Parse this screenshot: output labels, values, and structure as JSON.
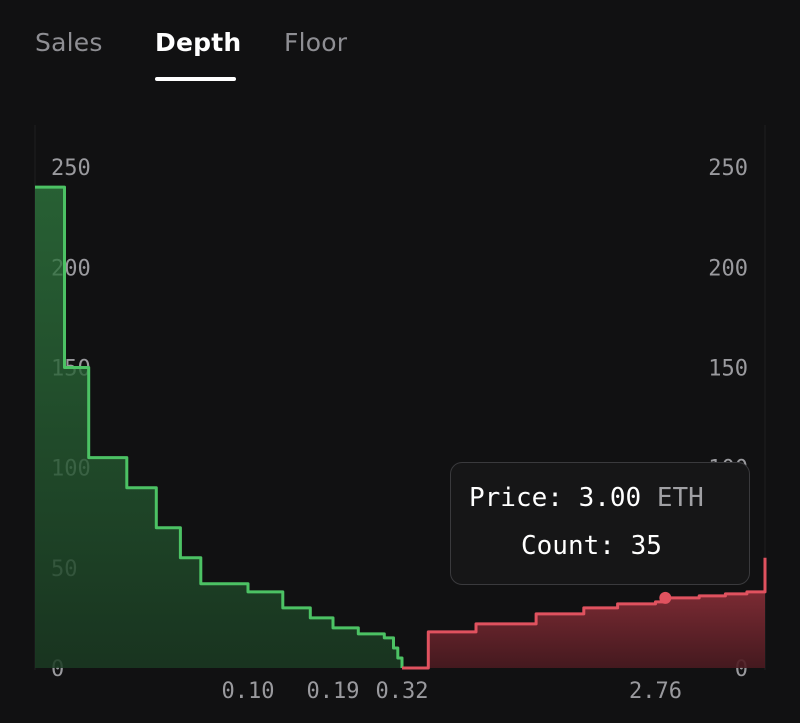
{
  "tabs": [
    {
      "label": "Sales",
      "active": false
    },
    {
      "label": "Depth",
      "active": true
    },
    {
      "label": "Floor",
      "active": false
    }
  ],
  "tooltip": {
    "price_label": "Price:",
    "price_value": "3.00",
    "price_unit": "ETH",
    "count_label": "Count:",
    "count_value": "35"
  },
  "colors": {
    "bid": "#4cc264",
    "ask": "#e0525f",
    "background": "#111112",
    "text_muted": "#9a9a9e"
  },
  "chart_data": {
    "type": "area",
    "title": "",
    "xlabel": "",
    "ylabel": "",
    "ylim": [
      0,
      275
    ],
    "y_ticks": [
      "0",
      "50",
      "100",
      "150",
      "200",
      "250"
    ],
    "x_ticks": [
      "0.10",
      "0.19",
      "0.32",
      "2.76"
    ],
    "grid": false,
    "series": [
      {
        "side": "bid",
        "color": "#4cc264",
        "x_price": [
          0.02,
          0.025,
          0.03,
          0.04,
          0.05,
          0.06,
          0.07,
          0.1,
          0.13,
          0.16,
          0.19,
          0.23,
          0.28,
          0.3,
          0.31,
          0.32
        ],
        "y_count": [
          240,
          150,
          105,
          90,
          70,
          55,
          42,
          38,
          30,
          25,
          20,
          17,
          15,
          10,
          5,
          0
        ]
      },
      {
        "side": "ask",
        "color": "#e0525f",
        "x_price": [
          0.32,
          0.4,
          0.6,
          1.0,
          1.5,
          2.0,
          2.76,
          3.0,
          4.0,
          5.0,
          6.0,
          7.0
        ],
        "y_count": [
          0,
          18,
          22,
          27,
          30,
          32,
          33,
          35,
          36,
          37,
          38,
          55
        ]
      }
    ],
    "highlight": {
      "price": 3.0,
      "count": 35
    }
  }
}
